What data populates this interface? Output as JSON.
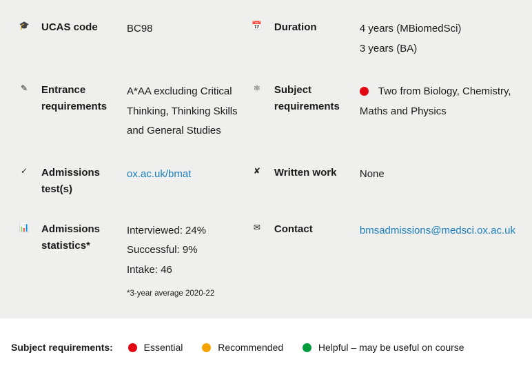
{
  "colors": {
    "panel_bg": "#efefed",
    "text": "#1a1a1a",
    "link": "#1b7fbd",
    "essential": "#e30613",
    "recommended": "#f5a300",
    "helpful": "#009b3a"
  },
  "rows": {
    "ucas": {
      "icon": "🎓",
      "label": "UCAS code",
      "value": "BC98"
    },
    "duration": {
      "icon": "📅",
      "label": "Duration",
      "line1": "4 years (MBiomedSci)",
      "line2": "3 years (BA)"
    },
    "entrance": {
      "icon": "✎",
      "label": "Entrance requirements",
      "value": "A*AA excluding Critical Thinking, Thinking Skills and General Studies"
    },
    "subject": {
      "icon": "⚛",
      "label": "Subject requirements",
      "value": "Two from Biology, Chemistry, Maths and Physics",
      "dot_color": "#e30613"
    },
    "admtest": {
      "icon": "✓",
      "label": "Admissions test(s)",
      "link_text": "ox.ac.uk/bmat"
    },
    "written": {
      "icon": "✘",
      "label": "Written work",
      "value": "None"
    },
    "stats": {
      "icon": "📊",
      "label": "Admissions statistics*",
      "line1": "Interviewed: 24%",
      "line2": "Successful: 9%",
      "line3": "Intake: 46",
      "footnote": "*3-year average 2020-22"
    },
    "contact": {
      "icon": "✉",
      "label": "Contact",
      "link_text": "bmsadmissions@medsci.ox.ac.uk"
    }
  },
  "legend": {
    "title": "Subject requirements:",
    "essential": "Essential",
    "recommended": "Recommended",
    "helpful": "Helpful – may be useful on course"
  }
}
